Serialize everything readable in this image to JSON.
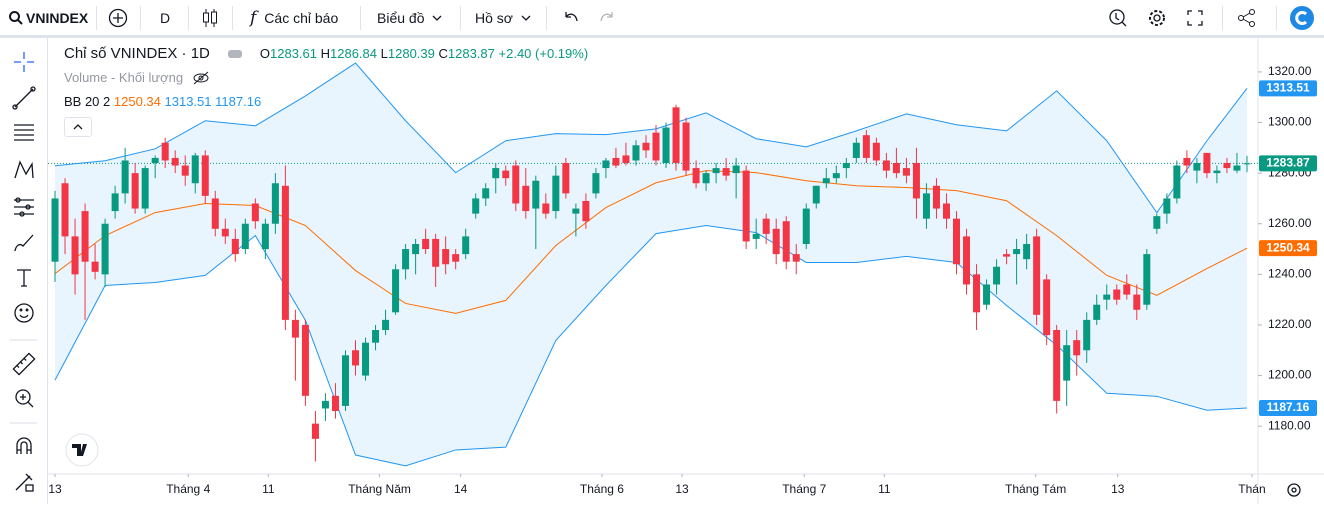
{
  "toolbar": {
    "symbol": "VNINDEX",
    "interval": "D",
    "indicators": "Các chỉ báo",
    "chart_type": "Biểu đồ",
    "profile": "Hồ sơ"
  },
  "chart_data": {
    "type": "candlestick",
    "title": "Chỉ số VNINDEX · 1D",
    "ohlc_letters": {
      "open": "O",
      "high": "H",
      "low": "L",
      "close": "C"
    },
    "change": "+2.40",
    "change_pct": "(+0.19%)",
    "volume_label": "Volume - Khối lượng",
    "bb_label": "BB 20 2",
    "up_color": "#089981",
    "down_color": "#f23645",
    "open": [
      1245,
      1276,
      1255,
      1265,
      1245,
      1240,
      1265,
      1272,
      1280,
      1266,
      1284,
      1292,
      1286,
      1283,
      1276,
      1287,
      1270,
      1258,
      1254,
      1250,
      1268,
      1250,
      1260,
      1275,
      1222,
      1220,
      1181,
      1187,
      1192,
      1188,
      1210,
      1200,
      1213,
      1218,
      1225,
      1242,
      1248,
      1254,
      1254,
      1250,
      1248,
      1248,
      1264,
      1270,
      1278,
      1281,
      1283,
      1275,
      1266,
      1268,
      1265,
      1284,
      1264,
      1269,
      1272,
      1282,
      1286,
      1287,
      1285,
      1292,
      1296,
      1284,
      1306,
      1300,
      1282,
      1276,
      1280,
      1282,
      1280,
      1281,
      1254,
      1262,
      1258,
      1261,
      1248,
      1252,
      1268,
      1276,
      1278,
      1282,
      1286,
      1295,
      1292,
      1285,
      1284,
      1282,
      1284,
      1262,
      1275,
      1268,
      1262,
      1255,
      1240,
      1228,
      1236,
      1248,
      1248,
      1246,
      1255,
      1238,
      1218,
      1198,
      1214,
      1210,
      1222,
      1230,
      1234,
      1236,
      1232,
      1228,
      1258,
      1264,
      1270,
      1286,
      1281,
      1288,
      1280,
      1284,
      1281,
      1283.61
    ],
    "high": [
      1273,
      1278,
      1262,
      1268,
      1252,
      1262,
      1275,
      1290,
      1284,
      1283,
      1287,
      1294,
      1289,
      1287,
      1288,
      1289,
      1273,
      1262,
      1258,
      1262,
      1270,
      1262,
      1280,
      1283,
      1226,
      1222,
      1186,
      1193,
      1197,
      1210,
      1214,
      1215,
      1220,
      1226,
      1244,
      1252,
      1254,
      1258,
      1256,
      1255,
      1250,
      1258,
      1272,
      1276,
      1284,
      1283,
      1285,
      1282,
      1279,
      1272,
      1283,
      1286,
      1268,
      1272,
      1282,
      1286,
      1290,
      1292,
      1293,
      1295,
      1299,
      1300,
      1307,
      1302,
      1285,
      1281,
      1284,
      1286,
      1286,
      1283,
      1262,
      1264,
      1262,
      1263,
      1252,
      1268,
      1275,
      1282,
      1283,
      1286,
      1294,
      1297,
      1294,
      1288,
      1290,
      1286,
      1290,
      1276,
      1278,
      1272,
      1265,
      1258,
      1244,
      1238,
      1246,
      1250,
      1254,
      1256,
      1258,
      1240,
      1220,
      1218,
      1218,
      1225,
      1232,
      1236,
      1236,
      1240,
      1236,
      1250,
      1264,
      1272,
      1285,
      1289,
      1286,
      1288,
      1283,
      1286,
      1288,
      1286.84
    ],
    "low": [
      1237,
      1248,
      1232,
      1222,
      1238,
      1235,
      1262,
      1268,
      1264,
      1264,
      1278,
      1282,
      1280,
      1275,
      1272,
      1268,
      1255,
      1252,
      1245,
      1248,
      1258,
      1246,
      1256,
      1218,
      1198,
      1188,
      1166,
      1182,
      1183,
      1186,
      1200,
      1198,
      1210,
      1216,
      1224,
      1238,
      1240,
      1248,
      1235,
      1240,
      1242,
      1246,
      1262,
      1267,
      1272,
      1275,
      1265,
      1262,
      1250,
      1262,
      1262,
      1270,
      1255,
      1258,
      1270,
      1278,
      1282,
      1283,
      1283,
      1286,
      1283,
      1282,
      1281,
      1279,
      1274,
      1273,
      1276,
      1277,
      1270,
      1250,
      1250,
      1252,
      1244,
      1242,
      1240,
      1250,
      1266,
      1274,
      1276,
      1278,
      1284,
      1284,
      1283,
      1278,
      1278,
      1276,
      1262,
      1258,
      1262,
      1258,
      1240,
      1232,
      1218,
      1226,
      1232,
      1244,
      1236,
      1242,
      1220,
      1212,
      1185,
      1188,
      1200,
      1205,
      1220,
      1226,
      1228,
      1230,
      1222,
      1226,
      1256,
      1260,
      1268,
      1280,
      1276,
      1278,
      1276,
      1280,
      1280,
      1280.39
    ],
    "close": [
      1270,
      1255,
      1240,
      1245,
      1241,
      1260,
      1272,
      1285,
      1266,
      1282,
      1286,
      1285,
      1283,
      1279,
      1287,
      1271,
      1258,
      1255,
      1248,
      1260,
      1261,
      1260,
      1276,
      1222,
      1215,
      1192,
      1175,
      1190,
      1186,
      1208,
      1204,
      1213,
      1218,
      1222,
      1242,
      1250,
      1252,
      1250,
      1243,
      1244,
      1245,
      1255,
      1270,
      1274,
      1282,
      1278,
      1268,
      1265,
      1277,
      1264,
      1279,
      1272,
      1266,
      1261,
      1280,
      1285,
      1283,
      1284,
      1291,
      1289,
      1285,
      1298,
      1284,
      1281,
      1276,
      1280,
      1282,
      1279,
      1283,
      1253,
      1256,
      1256,
      1248,
      1245,
      1245,
      1266,
      1275,
      1278,
      1280,
      1284,
      1292,
      1286,
      1285,
      1281,
      1280,
      1279,
      1270,
      1272,
      1266,
      1262,
      1244,
      1236,
      1225,
      1236,
      1243,
      1247,
      1250,
      1252,
      1224,
      1216,
      1190,
      1212,
      1208,
      1222,
      1228,
      1232,
      1230,
      1232,
      1226,
      1248,
      1263,
      1270,
      1283,
      1283,
      1284,
      1280,
      1281,
      1282,
      1283,
      1283.87
    ],
    "bands": {
      "x": [
        0,
        5,
        10,
        15,
        20,
        25,
        30,
        35,
        40,
        45,
        50,
        55,
        60,
        65,
        70,
        75,
        80,
        85,
        90,
        95,
        100,
        105,
        110,
        115,
        119
      ],
      "upper": {
        "color": "#2196f3",
        "values": [
          1282.9,
          1284.9,
          1289.6,
          1300.7,
          1298.7,
          1310.5,
          1323.5,
          1300.7,
          1280.2,
          1292.8,
          1295.6,
          1295.2,
          1297.5,
          1303.8,
          1293.6,
          1290.4,
          1296.7,
          1303.4,
          1299.1,
          1296.7,
          1312.5,
          1292.8,
          1264.4,
          1292.8,
          1313.51
        ]
      },
      "middle": {
        "color": "#ff6d00",
        "values": [
          1240.3,
          1255.3,
          1264.4,
          1268.0,
          1267.2,
          1259.3,
          1241.5,
          1228.5,
          1224.6,
          1229.7,
          1251.4,
          1266.4,
          1276.2,
          1281.0,
          1280.2,
          1277.0,
          1275.0,
          1274.3,
          1273.1,
          1269.1,
          1255.3,
          1239.6,
          1231.7,
          1242.3,
          1250.34
        ]
      },
      "lower": {
        "color": "#2196f3",
        "values": [
          1198.2,
          1235.6,
          1236.8,
          1239.6,
          1255.3,
          1221.8,
          1168.6,
          1164.3,
          1170.6,
          1171.7,
          1213.9,
          1235.6,
          1256.1,
          1259.3,
          1256.5,
          1244.7,
          1244.7,
          1247.1,
          1244.7,
          1227.7,
          1212.0,
          1193.0,
          1191.8,
          1186.3,
          1187.16
        ]
      }
    },
    "xlim": [
      -0.7,
      120.1
    ],
    "ylim": [
      1161.1,
      1333.4
    ],
    "yticks": [
      {
        "value": 1180,
        "label": "1180.00"
      },
      {
        "value": 1200,
        "label": "1200.00"
      },
      {
        "value": 1220,
        "label": "1220.00"
      },
      {
        "value": 1240,
        "label": "1240.00"
      },
      {
        "value": 1260,
        "label": "1260.00"
      },
      {
        "value": 1280,
        "label": "1280.00"
      },
      {
        "value": 1300,
        "label": "1300.00"
      },
      {
        "value": 1320,
        "label": "1320.00"
      }
    ],
    "xticks": [
      {
        "value": 0,
        "label": "13"
      },
      {
        "value": 13.3,
        "label": "Tháng 4"
      },
      {
        "value": 21.3,
        "label": "11"
      },
      {
        "value": 32.4,
        "label": "Tháng Năm"
      },
      {
        "value": 40.5,
        "label": "14"
      },
      {
        "value": 54.6,
        "label": "Tháng 6"
      },
      {
        "value": 62.6,
        "label": "13"
      },
      {
        "value": 74.8,
        "label": "Tháng 7"
      },
      {
        "value": 82.8,
        "label": "11"
      },
      {
        "value": 97.9,
        "label": "Tháng Tám"
      },
      {
        "value": 106.1,
        "label": "13"
      },
      {
        "value": 119.5,
        "label": "Thán"
      }
    ]
  }
}
